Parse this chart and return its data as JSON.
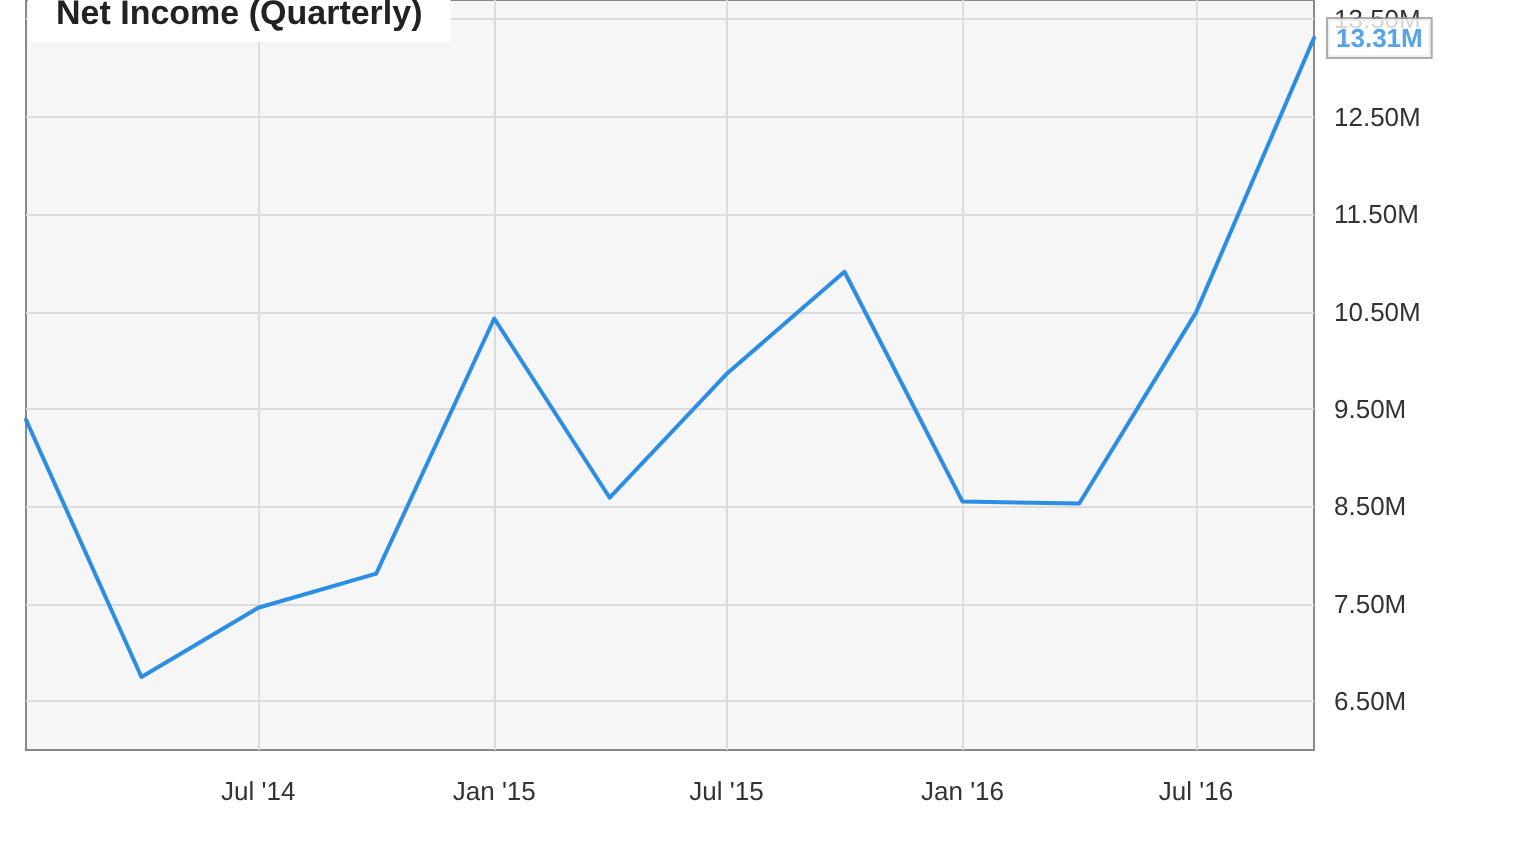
{
  "chart_data": {
    "type": "line",
    "title": "Net Income (Quarterly)",
    "x": [
      "2014-01-01",
      "2014-04-01",
      "2014-07-01",
      "2014-10-01",
      "2015-01-01",
      "2015-04-01",
      "2015-07-01",
      "2015-10-01",
      "2016-01-01",
      "2016-04-01",
      "2016-07-01",
      "2016-10-01"
    ],
    "series": [
      {
        "color": "#2b8de3",
        "values": [
          9.39,
          6.75,
          7.46,
          7.81,
          10.43,
          8.59,
          9.86,
          10.91,
          8.55,
          8.53,
          10.49,
          13.31
        ]
      }
    ],
    "xlim": [
      "2014-01-01",
      "2016-10-01"
    ],
    "xticks": [
      {
        "value": "2014-07-01",
        "label": "Jul '14"
      },
      {
        "value": "2015-01-01",
        "label": "Jan '15"
      },
      {
        "value": "2015-07-01",
        "label": "Jul '15"
      },
      {
        "value": "2016-01-01",
        "label": "Jan '16"
      },
      {
        "value": "2016-07-01",
        "label": "Jul '16"
      }
    ],
    "ylim": [
      6.0,
      13.7
    ],
    "yticks": [
      {
        "value": 6.5,
        "label": "6.50M"
      },
      {
        "value": 7.5,
        "label": "7.50M"
      },
      {
        "value": 8.5,
        "label": "8.50M"
      },
      {
        "value": 9.5,
        "label": "9.50M"
      },
      {
        "value": 10.5,
        "label": "10.50M"
      },
      {
        "value": 11.5,
        "label": "11.50M"
      },
      {
        "value": 12.5,
        "label": "12.50M"
      },
      {
        "value": 13.5,
        "label": "13.50M"
      }
    ],
    "annotations": [
      {
        "text": "13.31M",
        "x": "2016-10-01",
        "y": 13.31
      }
    ],
    "grid": true,
    "marker": "none",
    "line_style": "solid"
  }
}
